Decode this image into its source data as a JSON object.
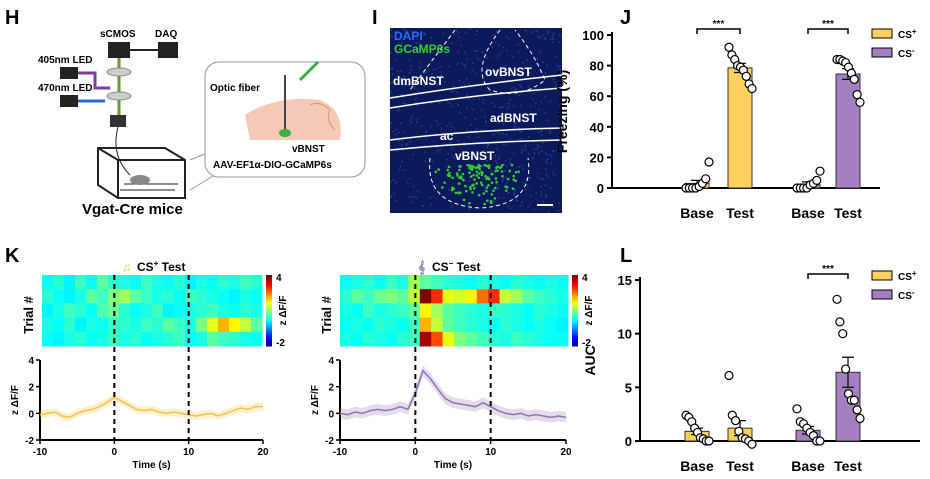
{
  "panels": {
    "H": {
      "label": "H",
      "camera": "sCMOS",
      "daq": "DAQ",
      "led405": "405nm LED",
      "led470": "470nm LED",
      "optic_fiber": "Optic fiber",
      "region": "vBNST",
      "virus": "AAV-EF1α-DIO-GCaMP6s",
      "mouse_line": "Vgat-Cre mice"
    },
    "I": {
      "label": "I",
      "stain1": "DAPI",
      "stain2": "GCaMP6s",
      "regions": [
        "dmBNST",
        "ovBNST",
        "adBNST",
        "ac",
        "vBNST"
      ],
      "colors": {
        "dapi": "#2a6cff",
        "gcamp": "#33cc33",
        "background": "#0b1a5a"
      }
    },
    "K": {
      "label": "K",
      "cs_plus_title": "CS",
      "cs_plus_sup": "+",
      "cs_minus_title": "CS",
      "cs_minus_sup": "−",
      "title_suffix": " Test",
      "trial_label": "Trial #",
      "colorbar_label": "z ΔF/F",
      "colorbar_max": "4",
      "colorbar_min": "-2"
    },
    "legend": {
      "cs": "CS",
      "plus": "+",
      "minus": "-",
      "colors": {
        "cs_plus": "#fdd15c",
        "cs_minus": "#a47fbf"
      }
    }
  },
  "chart_data": [
    {
      "id": "J",
      "label": "J",
      "type": "bar",
      "ylabel": "Freezing (%)",
      "ylim": [
        0,
        100
      ],
      "yticks": [
        0,
        20,
        40,
        60,
        80,
        100
      ],
      "categories": [
        "Base",
        "Test",
        "Base",
        "Test"
      ],
      "series": [
        {
          "name": "CS+",
          "color": "#fdd15c",
          "means": [
            3,
            78.5
          ],
          "sem": [
            2,
            3
          ],
          "points": [
            [
              0,
              0,
              0,
              0,
              1,
              3,
              6,
              17
            ],
            [
              92,
              87,
              84,
              80,
              79,
              77,
              73,
              68,
              65
            ]
          ]
        },
        {
          "name": "CS-",
          "color": "#a47fbf",
          "means": [
            2.5,
            74.5
          ],
          "sem": [
            1.5,
            3.5
          ],
          "points": [
            [
              0,
              0,
              0,
              0,
              2,
              3,
              5,
              11
            ],
            [
              84,
              84,
              83,
              82,
              79,
              75,
              71,
              61,
              56
            ]
          ]
        }
      ],
      "significance": [
        {
          "series": "CS+",
          "text": "***"
        },
        {
          "series": "CS-",
          "text": "***"
        }
      ]
    },
    {
      "id": "L",
      "label": "L",
      "type": "bar",
      "ylabel": "AUC",
      "ylim": [
        0,
        15
      ],
      "yticks": [
        0,
        5,
        10,
        15
      ],
      "categories": [
        "Base",
        "Test",
        "Base",
        "Test"
      ],
      "series": [
        {
          "name": "CS+",
          "color": "#fdd15c",
          "means": [
            0.9,
            1.2
          ],
          "sem": [
            0.3,
            0.7
          ],
          "points": [
            [
              2.4,
              2.2,
              1.8,
              1.2,
              0.8,
              0.3,
              0.2,
              0,
              0
            ],
            [
              6.1,
              2.4,
              1.9,
              0.9,
              0.3,
              0.2,
              0,
              -0.3
            ]
          ]
        },
        {
          "name": "CS-",
          "color": "#a47fbf",
          "means": [
            1.0,
            6.4
          ],
          "sem": [
            0.35,
            1.4
          ],
          "points": [
            [
              3.0,
              1.8,
              1.6,
              1.2,
              0.8,
              0.5,
              0,
              0
            ],
            [
              13.2,
              11.1,
              10,
              6.7,
              4.4,
              3.8,
              3.8,
              2.9,
              2.1
            ]
          ]
        }
      ],
      "significance": [
        {
          "series": "CS-",
          "text": "***"
        }
      ]
    },
    {
      "id": "K-heat-cs-plus",
      "type": "heatmap",
      "xlim": [
        -10,
        20
      ],
      "zlim": [
        -2,
        4
      ],
      "rows": 5,
      "values": [
        [
          0.3,
          0.5,
          0.2,
          0.6,
          0.3,
          0.8,
          0.5,
          0.4,
          0.3,
          0.6,
          0.4,
          0.3,
          0.5,
          0.2,
          0.4,
          0.3,
          0.5,
          0.4,
          0.6,
          0.5
        ],
        [
          0.5,
          0.3,
          0.2,
          0.4,
          0.8,
          0.6,
          1.0,
          1.2,
          0.8,
          0.6,
          0.4,
          0.5,
          0.3,
          0.6,
          0.5,
          0.4,
          0.3,
          0.2,
          0.4,
          0.3
        ],
        [
          0.2,
          0.4,
          0.6,
          0.5,
          0.3,
          0.7,
          0.9,
          0.5,
          0.3,
          0.4,
          0.6,
          0.2,
          0.3,
          0.4,
          0.5,
          0.6,
          0.4,
          0.3,
          0.5,
          0.4
        ],
        [
          0.4,
          0.3,
          0.5,
          0.2,
          0.4,
          0.3,
          0.6,
          0.5,
          0.4,
          0.6,
          0.5,
          0.8,
          0.6,
          0.4,
          1.0,
          1.6,
          2.2,
          1.8,
          1.4,
          0.8
        ],
        [
          0.3,
          0.2,
          0.4,
          0.5,
          0.3,
          0.4,
          0.6,
          0.4,
          0.5,
          0.3,
          0.4,
          0.5,
          0.6,
          0.3,
          0.4,
          0.8,
          0.6,
          0.5,
          0.4,
          0.3
        ]
      ]
    },
    {
      "id": "K-heat-cs-minus",
      "type": "heatmap",
      "xlim": [
        -10,
        20
      ],
      "zlim": [
        -2,
        4
      ],
      "rows": 5,
      "values": [
        [
          0.3,
          0.4,
          0.5,
          0.3,
          0.6,
          0.4,
          1.2,
          0.8,
          0.6,
          0.5,
          0.4,
          0.3,
          0.5,
          0.4,
          0.3,
          0.5,
          0.4,
          0.3,
          0.4,
          0.3
        ],
        [
          0.5,
          0.8,
          0.6,
          0.9,
          1.0,
          0.8,
          1.4,
          4.0,
          3.0,
          1.6,
          1.5,
          1.8,
          2.6,
          3.0,
          1.4,
          1.2,
          0.8,
          0.6,
          0.5,
          0.4
        ],
        [
          0.4,
          0.3,
          0.6,
          0.4,
          0.5,
          0.6,
          0.8,
          1.8,
          1.2,
          0.8,
          0.6,
          0.5,
          0.4,
          0.6,
          0.5,
          0.4,
          0.3,
          0.5,
          0.4,
          0.3
        ],
        [
          0.3,
          0.4,
          0.3,
          0.5,
          0.4,
          0.3,
          0.6,
          2.2,
          1.4,
          0.8,
          0.6,
          0.5,
          0.4,
          0.3,
          0.5,
          0.4,
          0.3,
          0.4,
          0.3,
          0.2
        ],
        [
          0.4,
          0.3,
          0.5,
          0.4,
          0.3,
          0.5,
          0.6,
          3.8,
          2.8,
          1.6,
          1.0,
          0.8,
          0.6,
          0.5,
          0.4,
          0.6,
          0.5,
          0.4,
          0.3,
          0.3
        ]
      ]
    },
    {
      "id": "K-trace-cs-plus",
      "type": "line",
      "color": "#f5c242",
      "xlabel": "Time (s)",
      "ylabel": "z ΔF/F",
      "xlim": [
        -10,
        20
      ],
      "ylim": [
        -2,
        4
      ],
      "xticks": [
        -10,
        0,
        10,
        20
      ],
      "yticks": [
        -2,
        0,
        2,
        4
      ],
      "event_lines": [
        0,
        10
      ],
      "x": [
        -10,
        -9,
        -8,
        -7,
        -6,
        -5,
        -4,
        -3,
        -2,
        -1,
        0,
        1,
        2,
        3,
        4,
        5,
        6,
        7,
        8,
        9,
        10,
        11,
        12,
        13,
        14,
        15,
        16,
        17,
        18,
        19,
        20
      ],
      "y": [
        -0.1,
        0,
        0.1,
        -0.2,
        -0.3,
        0,
        0.2,
        0.3,
        0.5,
        0.8,
        1.2,
        0.9,
        0.6,
        0.3,
        0.2,
        0.3,
        0.1,
        0,
        0.1,
        0,
        -0.1,
        -0.2,
        -0.1,
        0,
        -0.2,
        0,
        0.2,
        0.4,
        0.3,
        0.5,
        0.5
      ],
      "sem": 0.3
    },
    {
      "id": "K-trace-cs-minus",
      "type": "line",
      "color": "#9370b0",
      "xlabel": "Time (s)",
      "ylabel": "z ΔF/F",
      "xlim": [
        -10,
        20
      ],
      "ylim": [
        -2,
        4
      ],
      "xticks": [
        -10,
        0,
        10,
        20
      ],
      "yticks": [
        -2,
        0,
        2,
        4
      ],
      "event_lines": [
        0,
        10
      ],
      "x": [
        -10,
        -9,
        -8,
        -7,
        -6,
        -5,
        -4,
        -3,
        -2,
        -1,
        0,
        1,
        2,
        3,
        4,
        5,
        6,
        7,
        8,
        9,
        10,
        11,
        12,
        13,
        14,
        15,
        16,
        17,
        18,
        19,
        20
      ],
      "y": [
        0,
        -0.1,
        0.1,
        0,
        0.2,
        0.3,
        0.2,
        0.3,
        0.5,
        0.3,
        1.5,
        3.2,
        2.6,
        1.8,
        1.1,
        0.8,
        0.7,
        0.6,
        0.5,
        0.8,
        0.5,
        0.2,
        0,
        -0.1,
        0,
        -0.2,
        -0.1,
        -0.2,
        -0.3,
        -0.2,
        -0.3
      ],
      "sem": 0.4
    }
  ]
}
